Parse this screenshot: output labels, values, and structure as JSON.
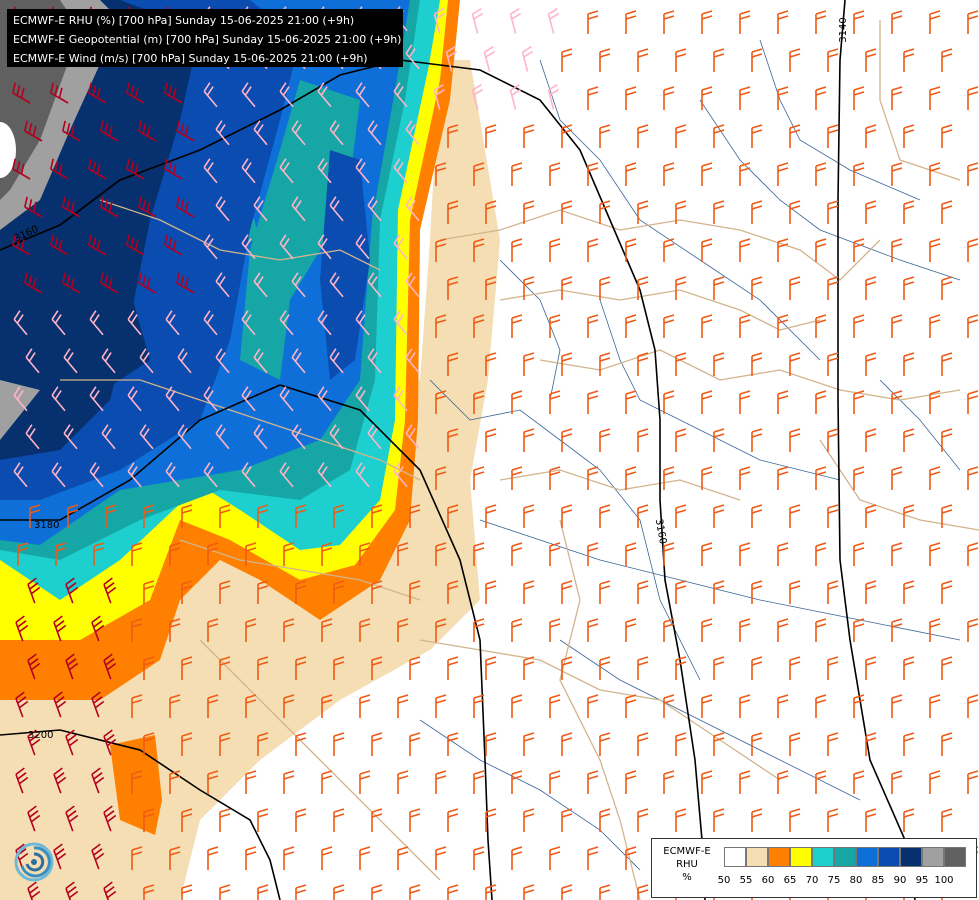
{
  "title_lines": [
    "ECMWF-E RHU (%) [700 hPa] Sunday 15-06-2025 21:00 (+9h)",
    "ECMWF-E Geopotential (m) [700 hPa] Sunday 15-06-2025 21:00 (+9h)",
    "ECMWF-E Wind (m/s) [700 hPa] Sunday 15-06-2025 21:00 (+9h)"
  ],
  "legend": {
    "name_line1": "ECMWF-E",
    "name_line2": "RHU",
    "unit": "%",
    "ticks": [
      "50",
      "55",
      "60",
      "65",
      "70",
      "75",
      "80",
      "85",
      "90",
      "95",
      "100"
    ],
    "colors": [
      "#ffffff",
      "#f5deb3",
      "#ff8000",
      "#ffff00",
      "#1ecfd0",
      "#17a6a6",
      "#0f6fd8",
      "#0a4cb0",
      "#06306e",
      "#a0a0a0",
      "#606060"
    ]
  },
  "contour_labels": {
    "c3140": "3140",
    "c3160": "3160",
    "c3180": "3180",
    "c3200": "3200",
    "c3160_left": "3160"
  },
  "colors": {
    "wind_orange": "#f05a14",
    "wind_red": "#b4001e",
    "wind_pink": "#ffb4c8",
    "border": "#d2b48c",
    "river": "#3c6496"
  },
  "icons": {
    "logo": "swirl-logo-icon"
  }
}
